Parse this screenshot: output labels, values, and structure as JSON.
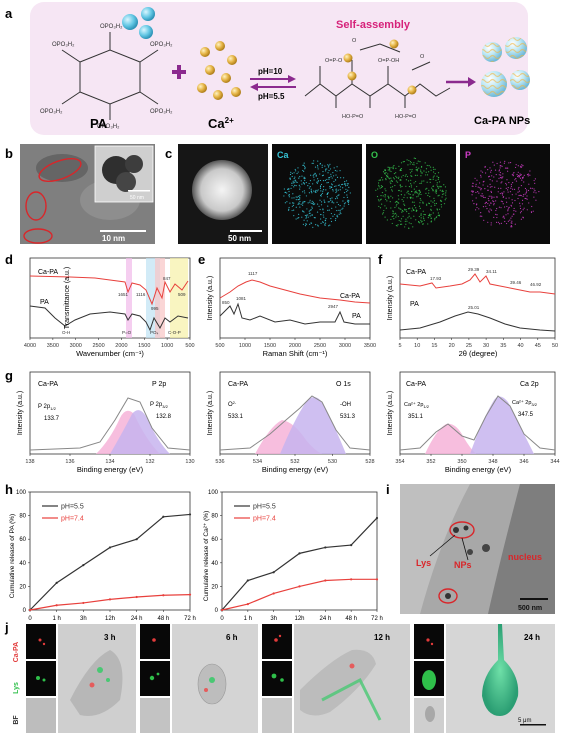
{
  "panels": {
    "a": {
      "letter": "a",
      "pa_label": "PA",
      "ca_label": "Ca",
      "ca_sup": "2+",
      "ph_high": "pH=10",
      "ph_low": "pH=5.5",
      "self_assembly": "Self-assembly",
      "product_label": "Ca-PA NPs",
      "colors": {
        "background": "#f6e6f4",
        "title": "#d6227a",
        "arrow": "#8b2a8e",
        "ca": "#e3b54a",
        "pa_bead": "#62c6e3"
      }
    },
    "b": {
      "letter": "b",
      "scale_main": "10 nm",
      "scale_inset": "50 nm"
    },
    "c": {
      "letter": "c",
      "scale": "50 nm",
      "maps": [
        {
          "label": "Ca",
          "color": "#36c4d6"
        },
        {
          "label": "O",
          "color": "#35c24d"
        },
        {
          "label": "P",
          "color": "#d13dc9"
        }
      ]
    },
    "d": {
      "letter": "d",
      "ylabel": "Transmittance (a.u.)",
      "xlabel": "Wavenumber (cm⁻¹)",
      "ticks": [
        "4000",
        "3500",
        "3000",
        "2500",
        "2000",
        "1500",
        "1000",
        "500"
      ],
      "series": [
        {
          "name": "Ca-PA",
          "color": "#e8403c"
        },
        {
          "name": "PA",
          "color": "#333333"
        }
      ],
      "annotations": [
        "1651",
        "1116",
        "995",
        "847",
        "509",
        "O-H",
        "P=O",
        "PO₄",
        "C-O-P"
      ]
    },
    "e": {
      "letter": "e",
      "ylabel": "Intensity (a.u.)",
      "xlabel": "Raman Shift (cm⁻¹)",
      "ticks": [
        "500",
        "1000",
        "1500",
        "2000",
        "2500",
        "3000",
        "3500"
      ],
      "series": [
        {
          "name": "Ca-PA",
          "color": "#e8403c"
        },
        {
          "name": "PA",
          "color": "#333333"
        }
      ],
      "annotations": [
        "1117",
        "850",
        "1081",
        "2947"
      ]
    },
    "f": {
      "letter": "f",
      "ylabel": "Intensity (a.u.)",
      "xlabel": "2θ (degree)",
      "ticks": [
        "5",
        "10",
        "15",
        "20",
        "25",
        "30",
        "35",
        "40",
        "45",
        "50"
      ],
      "series": [
        {
          "name": "Ca-PA",
          "color": "#e8403c"
        },
        {
          "name": "PA",
          "color": "#333333"
        }
      ],
      "annotations": [
        "17.93",
        "29.39",
        "34.11",
        "39.46",
        "46.92",
        "25.01"
      ]
    },
    "g": {
      "letter": "g",
      "ylabel": "Intensity (a.u.)",
      "xlabel": "Binding energy (eV)",
      "spectra": [
        {
          "sample": "Ca-PA",
          "element": "P 2p",
          "ticks": [
            "138",
            "136",
            "134",
            "132",
            "130"
          ],
          "peaks": [
            {
              "label": "P 2p",
              "sub": "1/2",
              "value": "133.7"
            },
            {
              "label": "P 2p",
              "sub": "3/2",
              "value": "132.8"
            }
          ]
        },
        {
          "sample": "Ca-PA",
          "element": "O 1s",
          "ticks": [
            "536",
            "534",
            "532",
            "530",
            "528"
          ],
          "peaks": [
            {
              "label": "O",
              "sub": "2-",
              "value": "533.1"
            },
            {
              "label": "-OH",
              "sub": "",
              "value": "531.3"
            }
          ]
        },
        {
          "sample": "Ca-PA",
          "element": "Ca 2p",
          "ticks": [
            "354",
            "352",
            "350",
            "348",
            "346",
            "344"
          ],
          "peaks": [
            {
              "label": "Ca²⁺ 2p",
              "sub": "1/2",
              "value": "351.1"
            },
            {
              "label": "Ca²⁺ 2p",
              "sub": "3/2",
              "value": "347.5"
            }
          ]
        }
      ]
    },
    "h": {
      "letter": "h",
      "charts": [
        {
          "ylabel": "Cumulative release of PA (%)",
          "ylim": [
            0,
            100
          ],
          "yticks": [
            "0",
            "20",
            "40",
            "60",
            "80",
            "100"
          ]
        },
        {
          "ylabel": "Cumulative release of Ca²⁺ (%)",
          "ylim": [
            0,
            100
          ],
          "yticks": [
            "0",
            "20",
            "40",
            "60",
            "80",
            "100"
          ]
        }
      ],
      "xticks": [
        "0",
        "1 h",
        "3h",
        "12h",
        "24 h",
        "48 h",
        "72 h"
      ]
    },
    "i": {
      "letter": "i",
      "labels": [
        "Lys",
        "NPs",
        "nucleus"
      ],
      "scale": "500 nm"
    },
    "j": {
      "letter": "j",
      "row_labels": [
        {
          "text": "Ca-PA",
          "color": "#e23b3b"
        },
        {
          "text": "Lys",
          "color": "#2fbf4a"
        },
        {
          "text": "BF",
          "color": "#333333"
        }
      ],
      "times": [
        "3 h",
        "6 h",
        "12 h",
        "24 h"
      ],
      "scale": "5 μm"
    }
  },
  "chart_data": [
    {
      "type": "line",
      "x": [
        "0",
        "1 h",
        "3h",
        "12h",
        "24 h",
        "48 h",
        "72 h"
      ],
      "ylabel": "Cumulative release of PA (%)",
      "ylim": [
        0,
        100
      ],
      "series": [
        {
          "name": "pH=5.5",
          "color": "#333333",
          "values": [
            0,
            23,
            38,
            53,
            60,
            79,
            81
          ]
        },
        {
          "name": "pH=7.4",
          "color": "#e8403c",
          "values": [
            0,
            4,
            6,
            9,
            11,
            12.5,
            13
          ]
        }
      ]
    },
    {
      "type": "line",
      "x": [
        "0",
        "1 h",
        "3h",
        "12h",
        "24 h",
        "48 h",
        "72 h"
      ],
      "ylabel": "Cumulative release of Ca²⁺ (%)",
      "ylim": [
        0,
        100
      ],
      "series": [
        {
          "name": "pH=5.5",
          "color": "#333333",
          "values": [
            0,
            25,
            32,
            48,
            53,
            55,
            78
          ]
        },
        {
          "name": "pH=7.4",
          "color": "#e8403c",
          "values": [
            0,
            5,
            14,
            20,
            25,
            26,
            26
          ]
        }
      ]
    }
  ]
}
